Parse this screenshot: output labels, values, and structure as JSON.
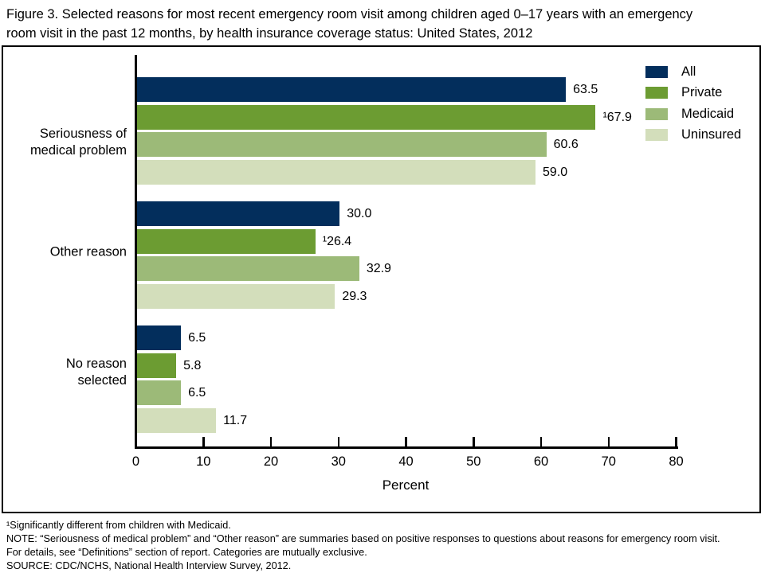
{
  "figure": {
    "title": "Figure 3. Selected reasons for most recent emergency room visit among children aged 0–17 years with an emergency\nroom visit in the past 12 months, by health insurance coverage status: United States, 2012"
  },
  "chart_data": {
    "type": "bar",
    "orientation": "horizontal",
    "xlabel": "Percent",
    "xlim": [
      0,
      80
    ],
    "xticks": [
      0,
      10,
      20,
      30,
      40,
      50,
      60,
      70,
      80
    ],
    "grid": false,
    "legend_position": "top-right",
    "categories": [
      "Seriousness of\nmedical problem",
      "Other reason",
      "No reason\nselected"
    ],
    "series": [
      {
        "name": "All",
        "color": "#032e5c",
        "values": [
          63.5,
          30.0,
          6.5
        ],
        "value_labels": [
          "63.5",
          "30.0",
          "6.5"
        ]
      },
      {
        "name": "Private",
        "color": "#6c9c32",
        "values": [
          67.9,
          26.4,
          5.8
        ],
        "value_labels": [
          "¹67.9",
          "¹26.4",
          "5.8"
        ]
      },
      {
        "name": "Medicaid",
        "color": "#9cba78",
        "values": [
          60.6,
          32.9,
          6.5
        ],
        "value_labels": [
          "60.6",
          "32.9",
          "6.5"
        ]
      },
      {
        "name": "Uninsured",
        "color": "#d3debb",
        "values": [
          59.0,
          29.3,
          11.7
        ],
        "value_labels": [
          "59.0",
          "29.3",
          "11.7"
        ]
      }
    ],
    "axis_color": "#000000",
    "text_color": "#000000"
  },
  "footnotes": {
    "lines": [
      "¹Significantly different from children with Medicaid.",
      "NOTE: “Seriousness of medical problem” and “Other reason” are summaries based on positive responses to questions about reasons for emergency room visit.",
      "For details, see “Definitions” section of report. Categories are mutually exclusive.",
      "SOURCE: CDC/NCHS, National Health Interview Survey, 2012."
    ]
  }
}
